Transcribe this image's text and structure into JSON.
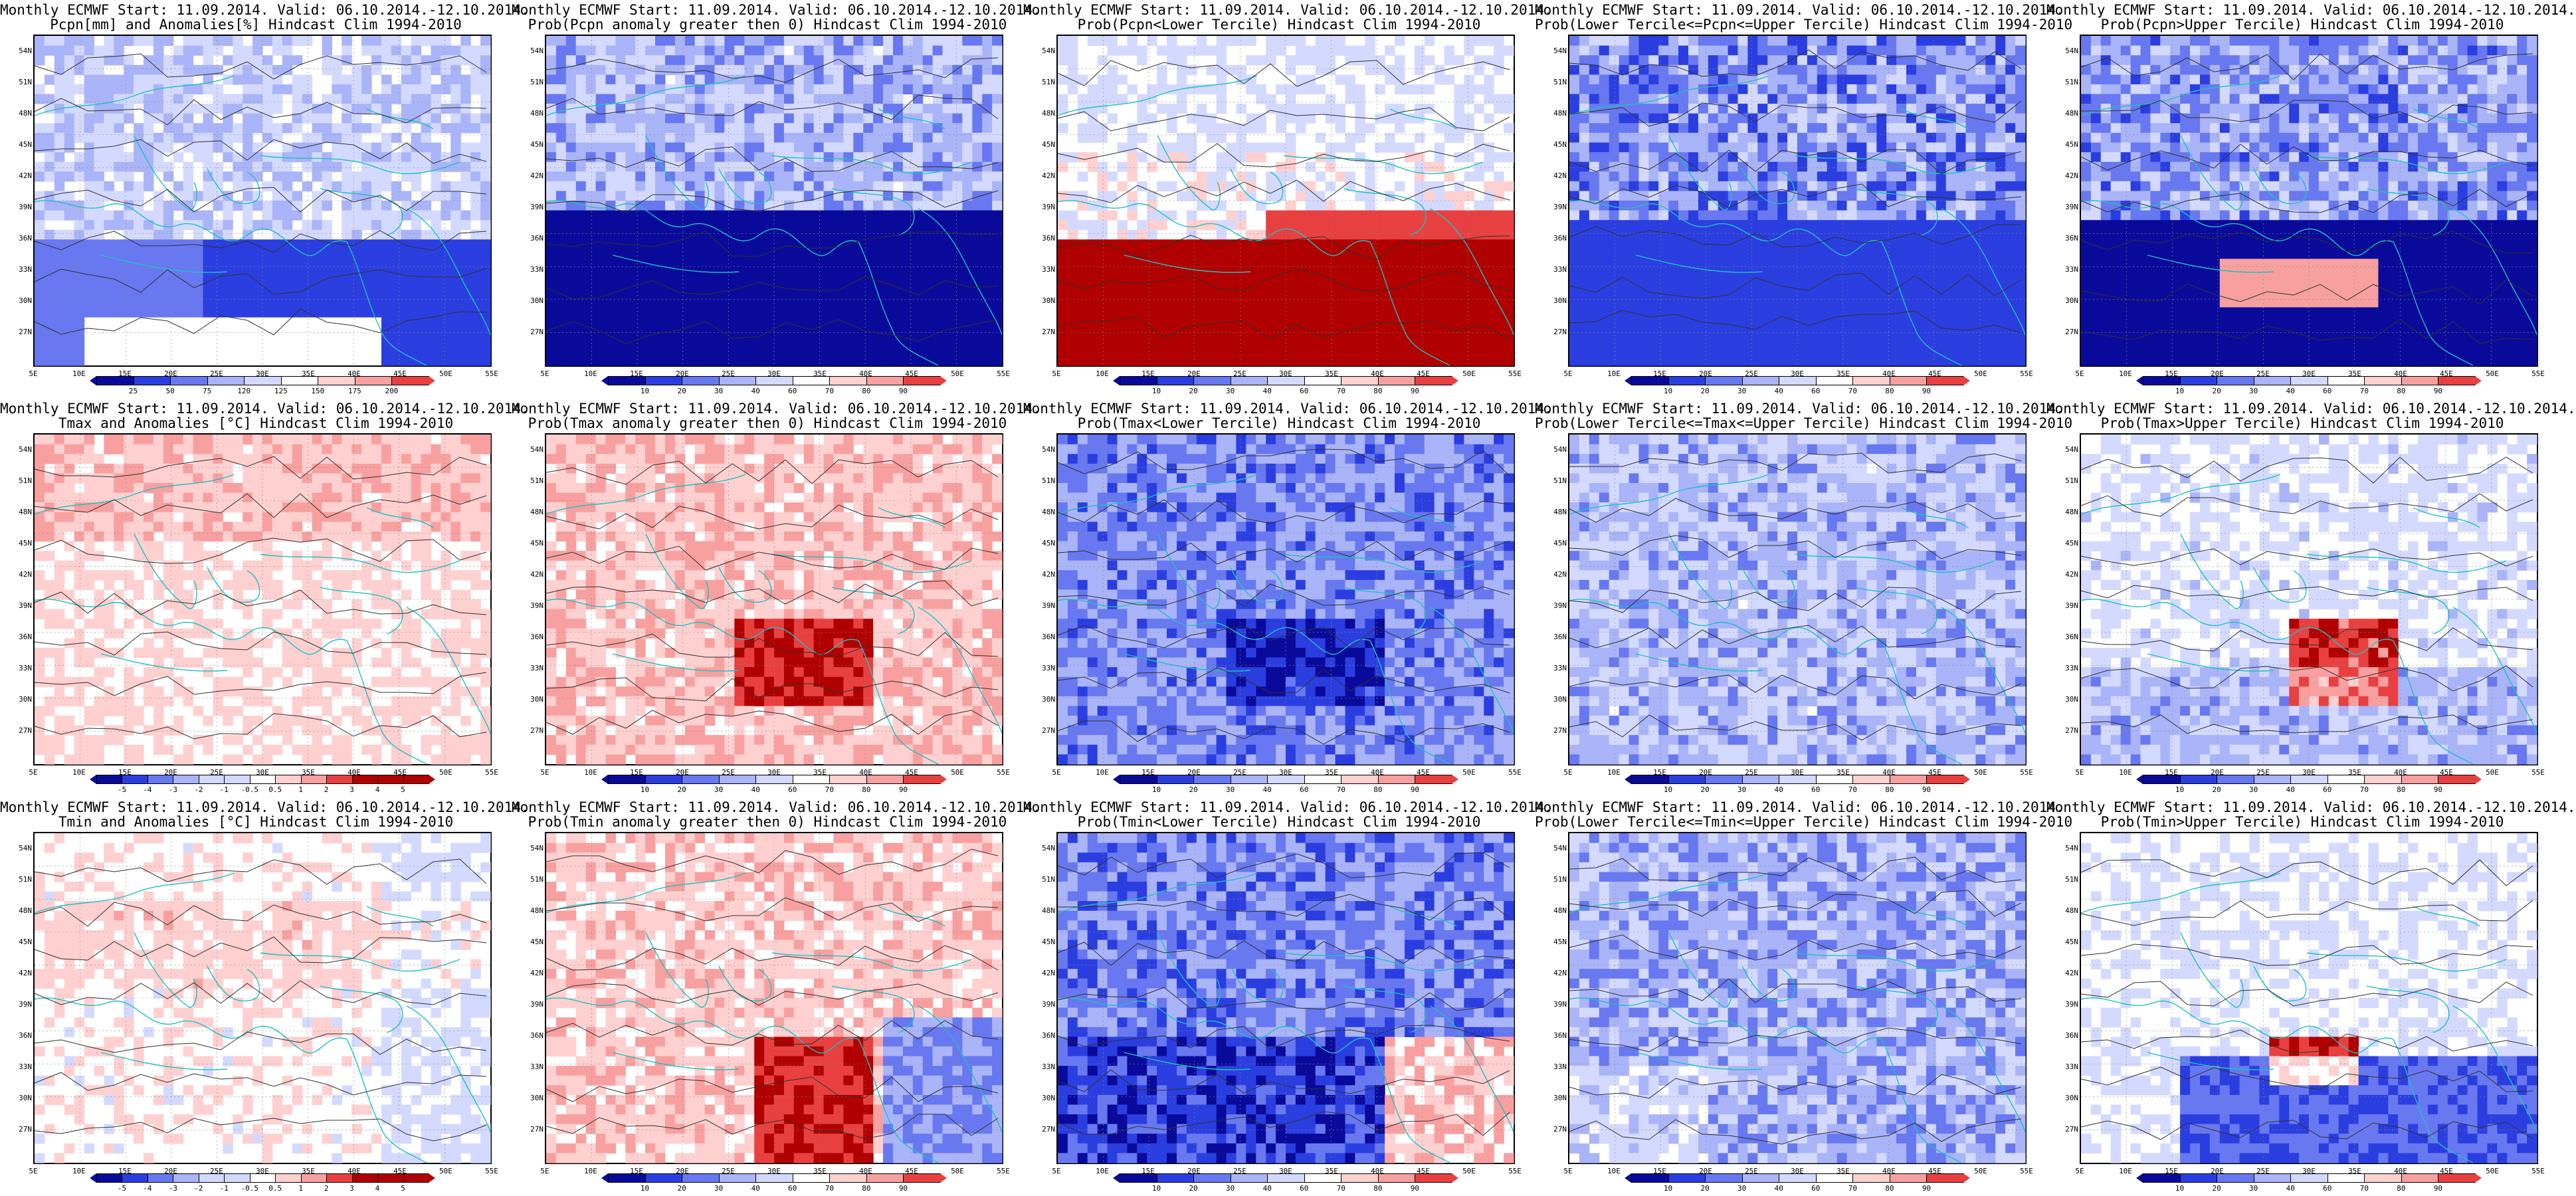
{
  "common": {
    "lat_labels": [
      "54N",
      "51N",
      "48N",
      "45N",
      "42N",
      "39N",
      "36N",
      "33N",
      "30N",
      "27N"
    ],
    "lon_labels": [
      "5E",
      "10E",
      "15E",
      "20E",
      "25E",
      "30E",
      "35E",
      "40E",
      "45E",
      "50E",
      "55E"
    ],
    "prob_scale": [
      "10",
      "20",
      "30",
      "40",
      "60",
      "70",
      "80",
      "90"
    ],
    "precip_scale": [
      "25",
      "50",
      "75",
      "120",
      "125",
      "150",
      "175",
      "200"
    ],
    "temp_scale": [
      "-5",
      "-4",
      "-3",
      "-2",
      "-1",
      "-0.5",
      "0.5",
      "1",
      "2",
      "3",
      "4",
      "5"
    ],
    "colors": {
      "deep_blue": "#0a0a9a",
      "blue": "#2a3ee0",
      "mid_blue": "#6878f0",
      "light_blue": "#aab4f8",
      "pale_blue": "#d4daff",
      "white": "#ffffff",
      "pale_red": "#ffd0d0",
      "light_red": "#f8a0a0",
      "red": "#e84040",
      "deep_red": "#b00000",
      "coast": "#20c0c0",
      "contour": "#303030"
    }
  },
  "panels": [
    {
      "title1": "Monthly ECMWF Start: 11.09.2014. Valid: 06.10.2014.-12.10.2014.",
      "title2": "Pcpn[mm] and Anomalies[%] Hindcast Clim 1994-2010",
      "scale": "precip",
      "pattern": "precip_anom"
    },
    {
      "title1": "Monthly ECMWF Start: 11.09.2014. Valid: 06.10.2014.-12.10.2014.",
      "title2": "Prob(Pcpn anomaly greater then 0) Hindcast Clim 1994-2010",
      "scale": "prob",
      "pattern": "blue_south"
    },
    {
      "title1": "Monthly ECMWF Start: 11.09.2014. Valid: 06.10.2014.-12.10.2014.",
      "title2": "Prob(Pcpn<Lower Tercile) Hindcast Clim 1994-2010",
      "scale": "prob",
      "pattern": "red_south"
    },
    {
      "title1": "Monthly ECMWF Start: 11.09.2014. Valid: 06.10.2014.-12.10.2014.",
      "title2": "Prob(Lower Tercile<=Pcpn<=Upper Tercile) Hindcast Clim 1994-2010",
      "scale": "prob",
      "pattern": "blue_all"
    },
    {
      "title1": "Monthly ECMWF Start: 11.09.2014. Valid: 06.10.2014.-12.10.2014.",
      "title2": "Prob(Pcpn>Upper Tercile) Hindcast Clim 1994-2010",
      "scale": "prob",
      "pattern": "blue_south2"
    },
    {
      "title1": "Monthly ECMWF Start: 11.09.2014. Valid: 06.10.2014.-12.10.2014.",
      "title2": "Tmax and Anomalies [°C] Hindcast Clim 1994-2010",
      "scale": "temp",
      "pattern": "pale_red"
    },
    {
      "title1": "Monthly ECMWF Start: 11.09.2014. Valid: 06.10.2014.-12.10.2014.",
      "title2": "Prob(Tmax anomaly greater then 0) Hindcast Clim 1994-2010",
      "scale": "prob",
      "pattern": "red_mid"
    },
    {
      "title1": "Monthly ECMWF Start: 11.09.2014. Valid: 06.10.2014.-12.10.2014.",
      "title2": "Prob(Tmax<Lower Tercile) Hindcast Clim 1994-2010",
      "scale": "prob",
      "pattern": "blue_mid"
    },
    {
      "title1": "Monthly ECMWF Start: 11.09.2014. Valid: 06.10.2014.-12.10.2014.",
      "title2": "Prob(Lower Tercile<=Tmax<=Upper Tercile) Hindcast Clim 1994-2010",
      "scale": "prob",
      "pattern": "blue_light"
    },
    {
      "title1": "Monthly ECMWF Start: 11.09.2014. Valid: 06.10.2014.-12.10.2014.",
      "title2": "Prob(Tmax>Upper Tercile) Hindcast Clim 1994-2010",
      "scale": "prob",
      "pattern": "mixed_red"
    },
    {
      "title1": "Monthly ECMWF Start: 11.09.2014. Valid: 06.10.2014.-12.10.2014.",
      "title2": "Tmin and Anomalies [°C] Hindcast Clim 1994-2010",
      "scale": "temp",
      "pattern": "pale_red2"
    },
    {
      "title1": "Monthly ECMWF Start: 11.09.2014. Valid: 06.10.2014.-12.10.2014.",
      "title2": "Prob(Tmin anomaly greater then 0) Hindcast Clim 1994-2010",
      "scale": "prob",
      "pattern": "red_mid2"
    },
    {
      "title1": "Monthly ECMWF Start: 11.09.2014. Valid: 06.10.2014.-12.10.2014.",
      "title2": "Prob(Tmin<Lower Tercile) Hindcast Clim 1994-2010",
      "scale": "prob",
      "pattern": "blue_mid2"
    },
    {
      "title1": "Monthly ECMWF Start: 11.09.2014. Valid: 06.10.2014.-12.10.2014.",
      "title2": "Prob(Lower Tercile<=Tmin<=Upper Tercile) Hindcast Clim 1994-2010",
      "scale": "prob",
      "pattern": "blue_light2"
    },
    {
      "title1": "Monthly ECMWF Start: 11.09.2014. Valid: 06.10.2014.-12.10.2014.",
      "title2": "Prob(Tmin>Upper Tercile) Hindcast Clim 1994-2010",
      "scale": "prob",
      "pattern": "mixed_blue"
    }
  ]
}
